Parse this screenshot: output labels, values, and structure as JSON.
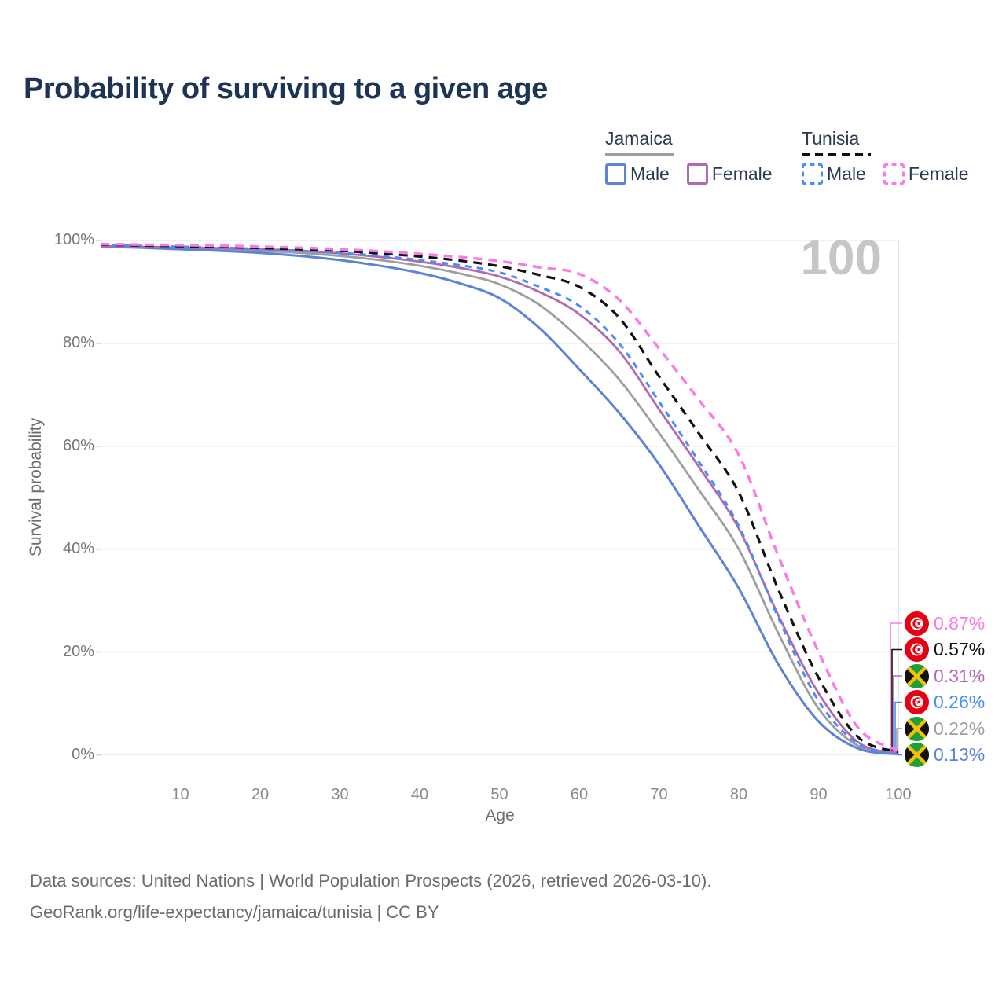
{
  "title": "Probability of surviving to a given age",
  "annotation_age": "100",
  "legend": {
    "groups": [
      {
        "label": "Jamaica",
        "line_color": "#9e9e9e",
        "line_style": "solid",
        "items": [
          {
            "label": "Male",
            "color": "#5b83d6",
            "style": "solid"
          },
          {
            "label": "Female",
            "color": "#b06ab3",
            "style": "solid"
          }
        ]
      },
      {
        "label": "Tunisia",
        "line_color": "#111111",
        "line_style": "dashed",
        "items": [
          {
            "label": "Male",
            "color": "#4a8df5",
            "style": "dashed"
          },
          {
            "label": "Female",
            "color": "#fb7ae4",
            "style": "dashed"
          }
        ]
      }
    ]
  },
  "chart_data": {
    "type": "line",
    "title": "Probability of surviving to a given age",
    "xlabel": "Age",
    "ylabel": "Survival probability",
    "xlim": [
      0,
      100
    ],
    "ylim": [
      0,
      100
    ],
    "grid": "horizontal",
    "x_ticks": [
      10,
      20,
      30,
      40,
      50,
      60,
      70,
      80,
      90,
      100
    ],
    "y_ticks": [
      "0%",
      "20%",
      "40%",
      "60%",
      "80%",
      "100%"
    ],
    "highlight_age": 100,
    "x": [
      0,
      5,
      10,
      15,
      20,
      25,
      30,
      35,
      40,
      45,
      50,
      55,
      60,
      65,
      70,
      75,
      80,
      85,
      90,
      95,
      100
    ],
    "series": [
      {
        "name": "Jamaica",
        "key": "jamaica-total",
        "color": "#9e9e9e",
        "dash": "",
        "width": 2.8,
        "values": [
          98.85,
          98.7,
          98.5,
          98.3,
          98.0,
          97.6,
          97.0,
          96.2,
          95.1,
          93.6,
          91.5,
          87.5,
          81.0,
          73.0,
          62.6,
          51.5,
          40.0,
          23.5,
          9.0,
          1.7,
          0.22
        ]
      },
      {
        "name": "Jamaica Male",
        "key": "jamaica-male",
        "color": "#5b83d6",
        "dash": "",
        "width": 3,
        "values": [
          98.8,
          98.6,
          98.3,
          98.0,
          97.6,
          97.0,
          96.2,
          95.1,
          93.7,
          91.7,
          88.8,
          83.0,
          75.0,
          66.5,
          56.5,
          44.5,
          32.4,
          17.5,
          6.5,
          1.2,
          0.13
        ]
      },
      {
        "name": "Jamaica Female",
        "key": "jamaica-female",
        "color": "#b06ab3",
        "dash": "",
        "width": 2.8,
        "values": [
          98.9,
          98.8,
          98.65,
          98.5,
          98.3,
          98.0,
          97.5,
          96.8,
          95.9,
          94.7,
          93.0,
          90.0,
          85.7,
          78.5,
          67.2,
          56.0,
          44.0,
          27.0,
          12.0,
          2.4,
          0.31
        ]
      },
      {
        "name": "Tunisia Male",
        "key": "tunisia-male",
        "color": "#4a8df5",
        "dash": "8 7",
        "width": 3,
        "values": [
          99.1,
          98.95,
          98.8,
          98.6,
          98.35,
          98.0,
          97.6,
          97.0,
          96.2,
          95.2,
          93.8,
          91.0,
          87.3,
          80.0,
          68.7,
          57.0,
          44.5,
          26.5,
          10.5,
          2.1,
          0.26
        ]
      },
      {
        "name": "Tunisia",
        "key": "tunisia-total",
        "color": "#111111",
        "dash": "11 8",
        "width": 3.2,
        "values": [
          99.2,
          99.05,
          98.9,
          98.75,
          98.55,
          98.3,
          98.0,
          97.5,
          96.9,
          96.1,
          95.0,
          93.3,
          91.0,
          85.0,
          73.6,
          62.5,
          51.0,
          32.0,
          15.0,
          3.4,
          0.57
        ]
      },
      {
        "name": "Tunisia Female",
        "key": "tunisia-female",
        "color": "#fb7ae4",
        "dash": "11 8",
        "width": 3.4,
        "values": [
          99.3,
          99.2,
          99.1,
          99.0,
          98.8,
          98.6,
          98.3,
          97.9,
          97.4,
          96.8,
          96.0,
          94.8,
          93.5,
          88.5,
          79.0,
          69.0,
          58.3,
          38.5,
          20.0,
          5.2,
          0.87
        ]
      }
    ],
    "end_labels": [
      {
        "flag": "tunisia",
        "series": "Tunisia Female",
        "value": "0.87%",
        "color": "#fb7ae4"
      },
      {
        "flag": "tunisia",
        "series": "Tunisia",
        "value": "0.57%",
        "color": "#111111"
      },
      {
        "flag": "jamaica",
        "series": "Jamaica Female",
        "value": "0.31%",
        "color": "#b565bb"
      },
      {
        "flag": "tunisia",
        "series": "Tunisia Male",
        "value": "0.26%",
        "color": "#4a8df5"
      },
      {
        "flag": "jamaica",
        "series": "Jamaica",
        "value": "0.22%",
        "color": "#9e9e9e"
      },
      {
        "flag": "jamaica",
        "series": "Jamaica Male",
        "value": "0.13%",
        "color": "#5b83d6"
      }
    ]
  },
  "footer": {
    "line1": "Data sources: United Nations | World Population Prospects (2026, retrieved 2026-03-10).",
    "line2": "GeoRank.org/life-expectancy/jamaica/tunisia | CC BY"
  }
}
